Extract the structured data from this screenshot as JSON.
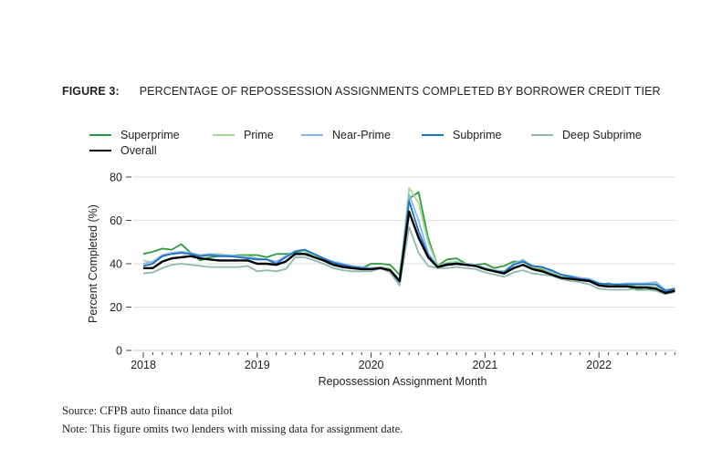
{
  "title": {
    "label": "FIGURE 3:",
    "text": "PERCENTAGE OF REPOSSESSION ASSIGNMENTS COMPLETED BY BORROWER CREDIT TIER"
  },
  "source": "Source: CFPB auto finance data pilot",
  "note": "Note: This figure omits two lenders with missing data for assignment date.",
  "chart_data": {
    "type": "line",
    "xlabel": "Repossession Assignment Month",
    "ylabel": "Percent Completed (%)",
    "ylim": [
      0,
      80
    ],
    "yticks": [
      "0",
      "20",
      "40",
      "60",
      "80"
    ],
    "xticks": [
      "2018",
      "2019",
      "2020",
      "2021",
      "2022"
    ],
    "x_start": "2018-01",
    "x_end": "2022-09",
    "grid": "horizontal",
    "legend_placement": "top",
    "series": [
      {
        "name": "Superprime",
        "color": "#2e9a3e",
        "values": [
          44.5,
          45.5,
          47,
          46.5,
          49,
          45,
          41.5,
          43,
          43.5,
          43.5,
          44,
          44,
          44,
          43,
          44.5,
          44.5,
          45,
          46,
          43,
          41.5,
          40,
          39,
          38.5,
          38,
          40,
          40,
          39.5,
          35,
          70,
          73,
          52,
          39,
          42,
          42.5,
          40,
          39.5,
          40,
          38,
          39,
          41,
          41,
          38.5,
          37.5,
          36,
          33.5,
          33,
          32.5,
          32,
          30,
          31,
          30,
          29.5,
          28,
          28,
          28.5,
          27,
          28
        ]
      },
      {
        "name": "Prime",
        "color": "#a8da92",
        "values": [
          41.5,
          40.5,
          44,
          45,
          45.5,
          45,
          44,
          44.5,
          44.5,
          43.5,
          43.5,
          43.5,
          42.5,
          42,
          41,
          43,
          45.5,
          46,
          44,
          42,
          40.5,
          39.5,
          39,
          38.5,
          38,
          38.5,
          37.5,
          32.5,
          75,
          68,
          50,
          39,
          40.5,
          41,
          40,
          39.5,
          38,
          37,
          36.5,
          40,
          42,
          38.5,
          38,
          36,
          34,
          34,
          33.5,
          33,
          31,
          30.5,
          30.5,
          30,
          29.5,
          29.5,
          29.5,
          27.5,
          28.5
        ]
      },
      {
        "name": "Near-Prime",
        "color": "#8ab8e6",
        "values": [
          40,
          41,
          44,
          45,
          45.5,
          45,
          44,
          44.5,
          44,
          44,
          43.5,
          43,
          42.5,
          42,
          41,
          43.5,
          46,
          46.5,
          44.5,
          42.5,
          41,
          40,
          39,
          38.5,
          38,
          38.5,
          37,
          32,
          72,
          60,
          45,
          38.5,
          40,
          40.5,
          40,
          39.5,
          38,
          37,
          36.5,
          40,
          41.5,
          39,
          38.5,
          36.5,
          35,
          34.5,
          33.5,
          33,
          31,
          30.5,
          30.5,
          31,
          31,
          31,
          31.5,
          28,
          28.5
        ]
      },
      {
        "name": "Subprime",
        "color": "#1f6fc0",
        "values": [
          39,
          40,
          43.5,
          44.5,
          45,
          44.5,
          43.5,
          44,
          43.5,
          43.5,
          43,
          42.5,
          42,
          42,
          40,
          43,
          45.5,
          46.5,
          44.5,
          42.5,
          40.5,
          39.5,
          38.5,
          38,
          37.5,
          38,
          37,
          31.5,
          69,
          55,
          44,
          38.5,
          40,
          40,
          39.5,
          39,
          37.5,
          36.5,
          36,
          39.5,
          41,
          39,
          38.5,
          37,
          35,
          34,
          33,
          32.5,
          31,
          30.5,
          30.5,
          30.5,
          30.5,
          30.5,
          30.5,
          27.5,
          28.5
        ]
      },
      {
        "name": "Deep Subprime",
        "color": "#8fb8b0",
        "values": [
          35.5,
          36,
          38,
          39.5,
          40,
          39.5,
          39,
          38.5,
          38.5,
          38.5,
          38.5,
          39,
          36.5,
          37,
          36.5,
          37.5,
          43,
          43,
          41.5,
          40,
          38,
          37,
          36.5,
          36.5,
          36.5,
          38,
          36,
          30,
          57,
          45,
          39,
          38,
          38,
          38.5,
          38,
          37.5,
          36,
          35,
          34,
          36,
          37,
          35.5,
          35,
          34.5,
          33,
          32,
          31.5,
          30.5,
          28.5,
          28,
          28,
          28,
          28.5,
          28,
          27.5,
          26,
          27
        ]
      },
      {
        "name": "Overall",
        "color": "#000000",
        "values": [
          38,
          38,
          41,
          42.5,
          43,
          43.5,
          42.5,
          42,
          41.5,
          41.5,
          41.5,
          41.5,
          40,
          40,
          39.5,
          41,
          44.5,
          44.5,
          43,
          41.5,
          39.5,
          38.5,
          38,
          37.5,
          37.5,
          38,
          37,
          32,
          64,
          52,
          43,
          38.5,
          39.5,
          40,
          39.5,
          39,
          37.5,
          36.5,
          35.5,
          38,
          39.5,
          37.5,
          36.5,
          35,
          33.5,
          33,
          32.5,
          32,
          30,
          29.5,
          29.5,
          29.5,
          29,
          29,
          28.5,
          26.5,
          27.5
        ]
      }
    ]
  }
}
